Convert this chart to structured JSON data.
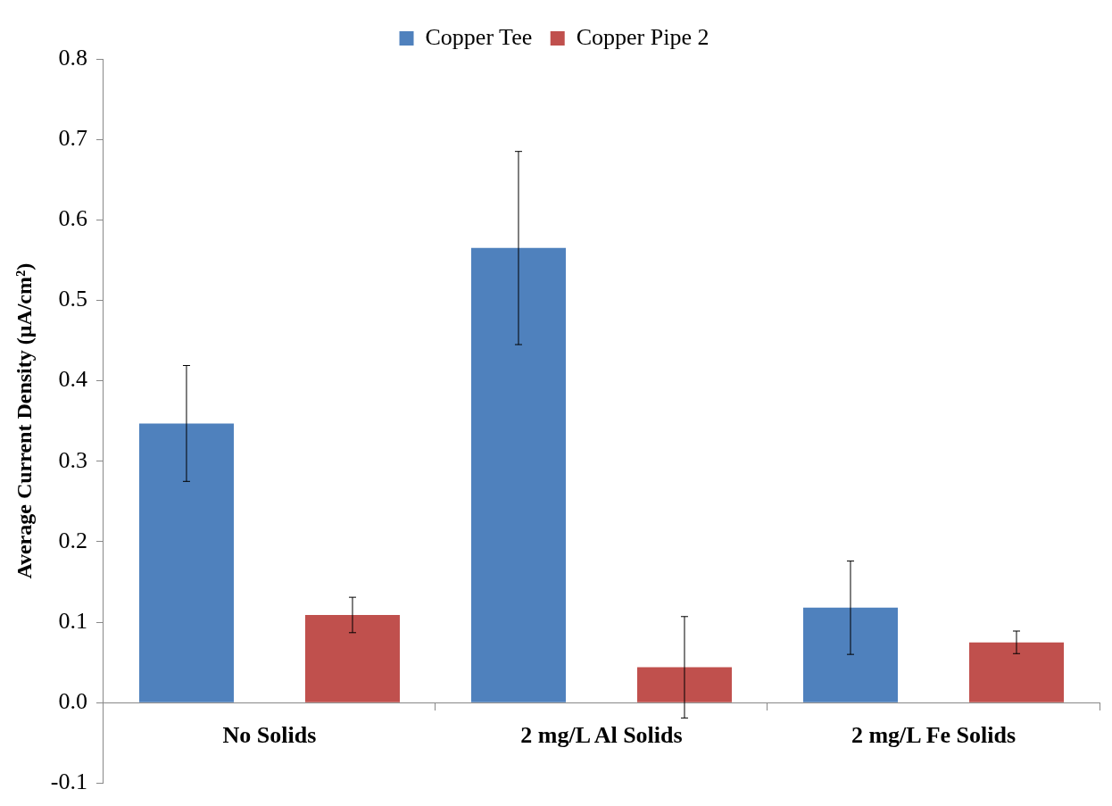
{
  "chart_data": {
    "type": "bar",
    "ylabel": "Average Current Density (μA/cm²)",
    "categories": [
      "No Solids",
      "2 mg/L Al Solids",
      "2 mg/L Fe Solids"
    ],
    "series": [
      {
        "name": "Copper Tee",
        "color": "#4f81bd",
        "values": [
          0.347,
          0.565,
          0.118
        ],
        "errors": [
          0.072,
          0.12,
          0.058
        ]
      },
      {
        "name": "Copper Pipe 2",
        "color": "#c0504d",
        "values": [
          0.109,
          0.044,
          0.075
        ],
        "errors": [
          0.022,
          0.063,
          0.014
        ]
      }
    ],
    "ylim": [
      -0.1,
      0.8
    ],
    "yticks": [
      {
        "value": -0.1,
        "label": "-0.1"
      },
      {
        "value": 0,
        "label": "0.0"
      },
      {
        "value": 0.1,
        "label": "0.1"
      },
      {
        "value": 0.2,
        "label": "0.2"
      },
      {
        "value": 0.3,
        "label": "0.3"
      },
      {
        "value": 0.4,
        "label": "0.4"
      },
      {
        "value": 0.5,
        "label": "0.5"
      },
      {
        "value": 0.6,
        "label": "0.6"
      },
      {
        "value": 0.7,
        "label": "0.7"
      },
      {
        "value": 0.8,
        "label": "0.8"
      }
    ],
    "grid": false,
    "legend": "top"
  }
}
